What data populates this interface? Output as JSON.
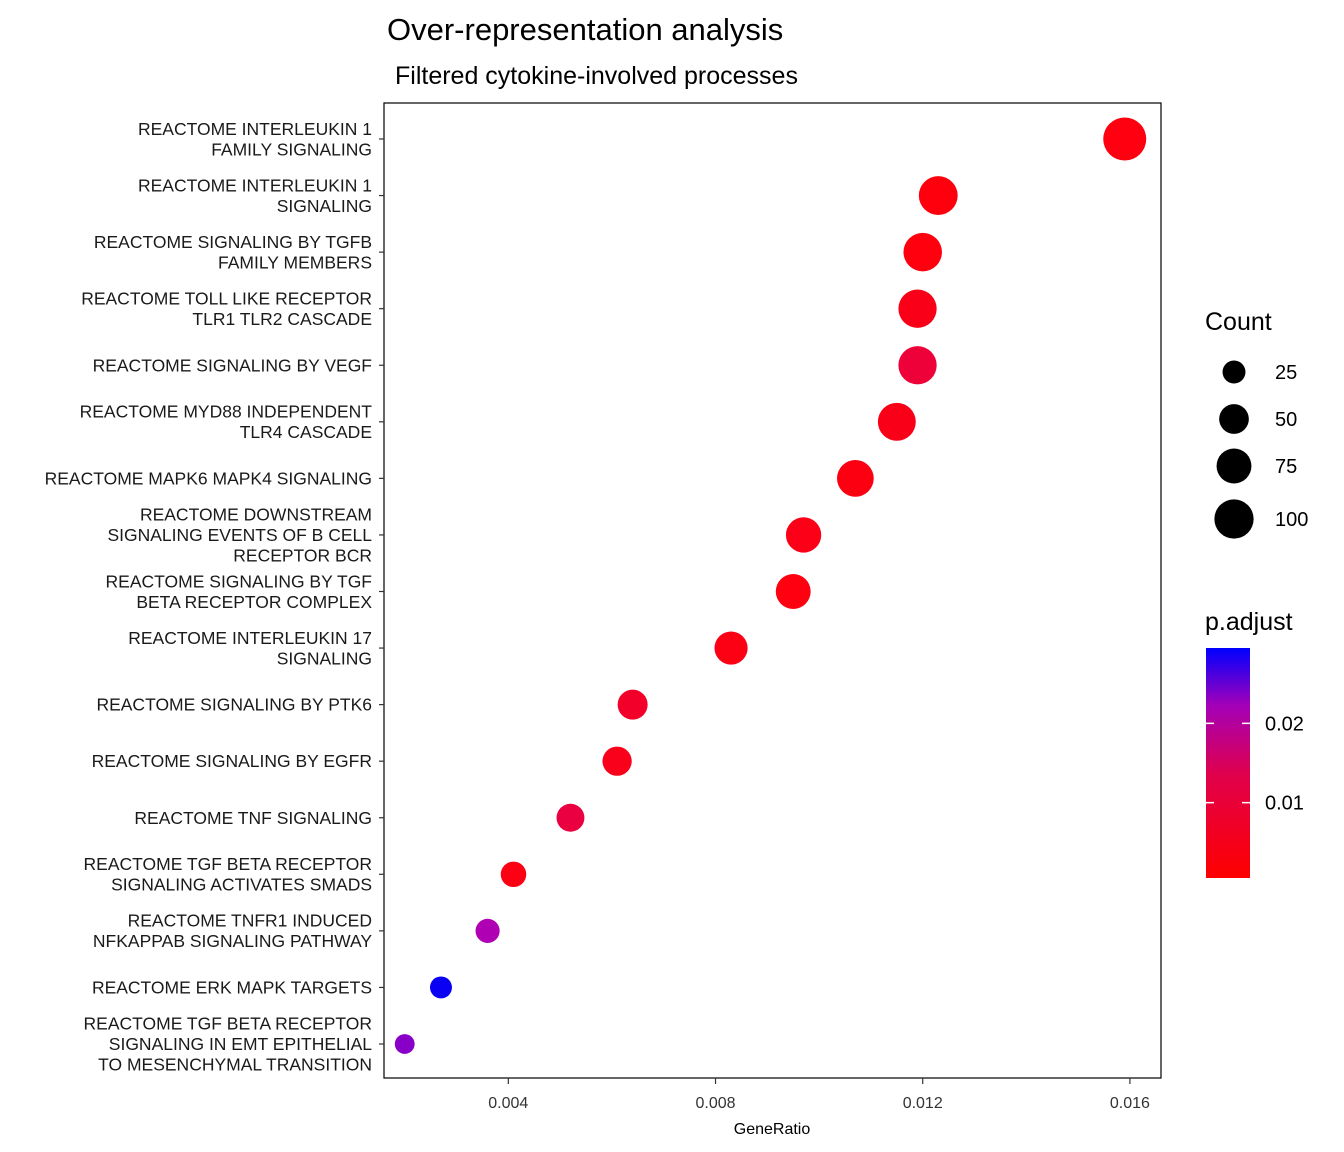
{
  "chart_data": {
    "type": "scatter",
    "title": "Over-representation analysis",
    "subtitle": "Filtered cytokine-involved processes",
    "xlabel": "GeneRatio",
    "ylabel": "",
    "xlim": [
      0.0016,
      0.0166
    ],
    "xticks": [
      0.004,
      0.008,
      0.012,
      0.016
    ],
    "xtick_labels": [
      "0.004",
      "0.008",
      "0.012",
      "0.016"
    ],
    "grid": false,
    "legend_position": "right",
    "size_legend": {
      "title": "Count",
      "values": [
        25,
        50,
        75,
        100
      ],
      "labels": [
        "25",
        "50",
        "75",
        "100"
      ]
    },
    "color_legend": {
      "title": "p.adjust",
      "ticks": [
        0.01,
        0.02
      ],
      "tick_labels": [
        "0.01",
        "0.02"
      ],
      "range": [
        0.0005,
        0.0295
      ],
      "low_color": "#ff0000",
      "high_color": "#0000ff"
    },
    "points": [
      {
        "label": [
          "REACTOME INTERLEUKIN 1",
          "FAMILY SIGNALING"
        ],
        "x": 0.0159,
        "count": 110,
        "p_adjust": 0.0012,
        "color": "#fe0010"
      },
      {
        "label": [
          "REACTOME INTERLEUKIN 1",
          "SIGNALING"
        ],
        "x": 0.0123,
        "count": 86,
        "p_adjust": 0.001,
        "color": "#fe000d"
      },
      {
        "label": [
          "REACTOME SIGNALING BY TGFB",
          "FAMILY MEMBERS"
        ],
        "x": 0.012,
        "count": 84,
        "p_adjust": 0.0011,
        "color": "#fe000e"
      },
      {
        "label": [
          "REACTOME TOLL LIKE RECEPTOR",
          "TLR1 TLR2 CASCADE"
        ],
        "x": 0.0119,
        "count": 83,
        "p_adjust": 0.002,
        "color": "#fa0018"
      },
      {
        "label": [
          "REACTOME SIGNALING BY VEGF"
        ],
        "x": 0.0119,
        "count": 83,
        "p_adjust": 0.006,
        "color": "#ee0038"
      },
      {
        "label": [
          "REACTOME MYD88 INDEPENDENT",
          "TLR4 CASCADE"
        ],
        "x": 0.0115,
        "count": 81,
        "p_adjust": 0.002,
        "color": "#fa0018"
      },
      {
        "label": [
          "REACTOME MAPK6 MAPK4 SIGNALING"
        ],
        "x": 0.0107,
        "count": 75,
        "p_adjust": 0.0014,
        "color": "#fc0012"
      },
      {
        "label": [
          "REACTOME DOWNSTREAM",
          "SIGNALING EVENTS OF B CELL",
          "RECEPTOR BCR"
        ],
        "x": 0.0097,
        "count": 68,
        "p_adjust": 0.0018,
        "color": "#fb0016"
      },
      {
        "label": [
          "REACTOME SIGNALING BY TGF",
          "BETA RECEPTOR COMPLEX"
        ],
        "x": 0.0095,
        "count": 66,
        "p_adjust": 0.0012,
        "color": "#fe0010"
      },
      {
        "label": [
          "REACTOME INTERLEUKIN 17",
          "SIGNALING"
        ],
        "x": 0.0083,
        "count": 58,
        "p_adjust": 0.0015,
        "color": "#fc0013"
      },
      {
        "label": [
          "REACTOME SIGNALING BY PTK6"
        ],
        "x": 0.0064,
        "count": 45,
        "p_adjust": 0.004,
        "color": "#f2002a"
      },
      {
        "label": [
          "REACTOME SIGNALING BY EGFR"
        ],
        "x": 0.0061,
        "count": 42,
        "p_adjust": 0.0022,
        "color": "#f9001b"
      },
      {
        "label": [
          "REACTOME TNF SIGNALING"
        ],
        "x": 0.0052,
        "count": 37,
        "p_adjust": 0.007,
        "color": "#ea0040"
      },
      {
        "label": [
          "REACTOME TGF BETA RECEPTOR",
          "SIGNALING ACTIVATES SMADS"
        ],
        "x": 0.0041,
        "count": 29,
        "p_adjust": 0.0016,
        "color": "#fc0014"
      },
      {
        "label": [
          "REACTOME TNFR1 INDUCED",
          "NFKAPPAB SIGNALING PATHWAY"
        ],
        "x": 0.0036,
        "count": 25,
        "p_adjust": 0.023,
        "color": "#b000b4"
      },
      {
        "label": [
          "REACTOME ERK MAPK TARGETS"
        ],
        "x": 0.0027,
        "count": 19,
        "p_adjust": 0.029,
        "color": "#0a00f4"
      },
      {
        "label": [
          "REACTOME TGF BETA RECEPTOR",
          "SIGNALING IN EMT EPITHELIAL",
          "TO MESENCHYMAL TRANSITION"
        ],
        "x": 0.002,
        "count": 14,
        "p_adjust": 0.026,
        "color": "#8800c8"
      }
    ]
  }
}
